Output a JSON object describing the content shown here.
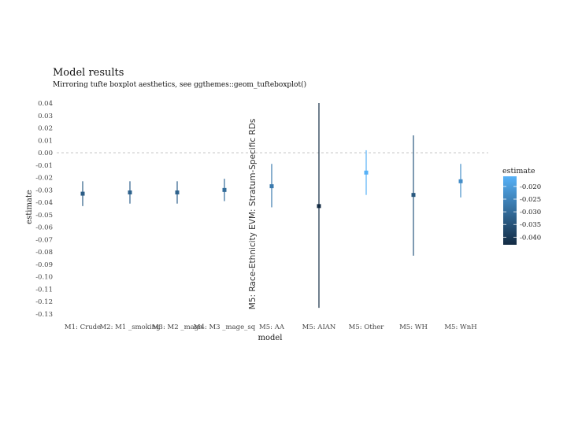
{
  "chart_data": {
    "type": "scatter",
    "title": "Model results",
    "subtitle": "Mirroring tufte boxplot aesthetics, see ggthemes::geom_tufteboxplot()",
    "xlabel": "model",
    "ylabel": "estimate",
    "ylim": [
      -0.13,
      0.04
    ],
    "y_ticks": [
      0.04,
      0.03,
      0.02,
      0.01,
      0.0,
      -0.01,
      -0.02,
      -0.03,
      -0.04,
      -0.05,
      -0.06,
      -0.07,
      -0.08,
      -0.09,
      -0.1,
      -0.11,
      -0.12,
      -0.13
    ],
    "y_tick_labels": [
      "0.04",
      "0.03",
      "0.02",
      "0.01",
      "0.00",
      "-0.01",
      "-0.02",
      "-0.03",
      "-0.04",
      "-0.05",
      "-0.06",
      "-0.07",
      "-0.08",
      "-0.09",
      "-0.10",
      "-0.11",
      "-0.12",
      "-0.13"
    ],
    "reference_line": 0,
    "grid": false,
    "categories": [
      "M1: Crude",
      "M2: M1 _smoking",
      "M3: M2 _mage",
      "M4: M3 _mage_sq",
      "M5: AA",
      "M5: AIAN",
      "M5: Other",
      "M5: WH",
      "M5: WnH"
    ],
    "estimates": [
      -0.033,
      -0.032,
      -0.032,
      -0.03,
      -0.027,
      -0.043,
      -0.016,
      -0.034,
      -0.023
    ],
    "lower": [
      -0.043,
      -0.041,
      -0.041,
      -0.039,
      -0.044,
      -0.125,
      -0.034,
      -0.083,
      -0.036
    ],
    "upper": [
      -0.023,
      -0.023,
      -0.023,
      -0.021,
      -0.009,
      0.04,
      0.002,
      0.014,
      -0.009
    ],
    "overlay_label": "M5: Race-Ethnicity EVM: Stratum-Specific RDs",
    "legend": {
      "title": "estimate",
      "position": "right",
      "range": [
        -0.043,
        -0.016
      ],
      "ticks": [
        -0.02,
        -0.025,
        -0.03,
        -0.035,
        -0.04
      ],
      "tick_labels": [
        "-0.020",
        "-0.025",
        "-0.030",
        "-0.035",
        "-0.040"
      ],
      "color_low": "#132b43",
      "color_high": "#56b1f7"
    }
  }
}
